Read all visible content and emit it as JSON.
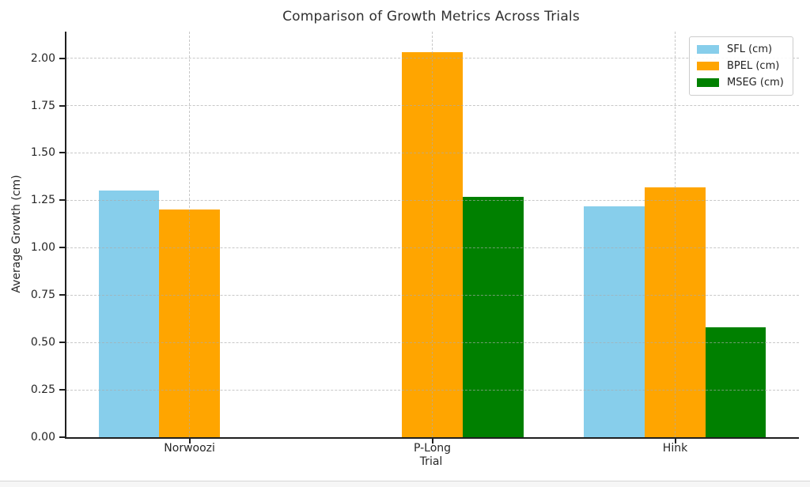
{
  "chart_data": {
    "type": "bar",
    "title": "Comparison of Growth Metrics Across Trials",
    "xlabel": "Trial",
    "ylabel": "Average Growth (cm)",
    "categories": [
      "Norwoozi",
      "P-Long",
      "Hink"
    ],
    "series": [
      {
        "name": "SFL (cm)",
        "color": "#87CEEB",
        "values": [
          1.3,
          0,
          1.22
        ]
      },
      {
        "name": "BPEL (cm)",
        "color": "#FFA500",
        "values": [
          1.2,
          2.03,
          1.32
        ]
      },
      {
        "name": "MSEG (cm)",
        "color": "#008000",
        "values": [
          0,
          1.27,
          0.58
        ]
      }
    ],
    "bar_width": 0.25,
    "xlim": [
      -0.507,
      2.51
    ],
    "ylim": [
      0,
      2.14
    ],
    "ytick_values": [
      0,
      0.25,
      0.5,
      0.75,
      1.0,
      1.25,
      1.5,
      1.75,
      2.0
    ],
    "ytick_labels": [
      "0.00",
      "0.25",
      "0.50",
      "0.75",
      "1.00",
      "1.25",
      "1.50",
      "1.75",
      "2.00"
    ],
    "grid": true,
    "grid_style": "dashed",
    "legend_position": "upper right",
    "legend_entries": [
      "SFL (cm)",
      "BPEL (cm)",
      "MSEG (cm)"
    ]
  },
  "page": {
    "background": "#ffffff",
    "footer_bar_color": "#f6f6f6",
    "footer_bar_border": "#d5d5d5"
  }
}
